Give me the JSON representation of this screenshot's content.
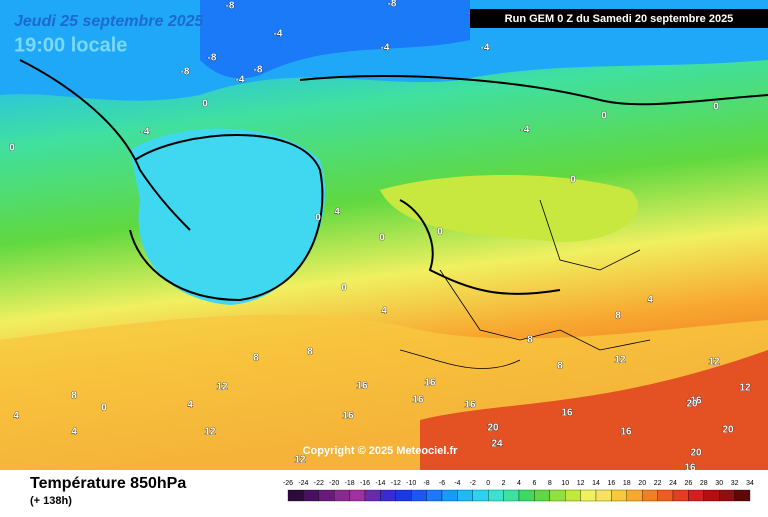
{
  "header": {
    "date": "Jeudi 25 septembre 2025",
    "time": "19:00 locale",
    "run": "Run GEM 0 Z du Samedi 20 septembre 2025"
  },
  "copyright": "Copyright © 2025 Meteociel.fr",
  "footer": {
    "title": "Température 850hPa",
    "lead": "(+ 138h)"
  },
  "legend": {
    "ticks": [
      -26,
      -24,
      -22,
      -20,
      -18,
      -16,
      -14,
      -12,
      -10,
      -8,
      -6,
      -4,
      -2,
      0,
      2,
      4,
      6,
      8,
      10,
      12,
      14,
      16,
      18,
      20,
      22,
      24,
      26,
      28,
      30,
      32,
      34
    ],
    "colors": [
      "#2d0a3c",
      "#4a1060",
      "#6a1a7a",
      "#8a2a8e",
      "#a030a0",
      "#6a2ab0",
      "#3a2ad0",
      "#1a3ae0",
      "#1a5af0",
      "#1a7af8",
      "#1a9af8",
      "#20b8f8",
      "#30d0f0",
      "#40e0d0",
      "#40e0a0",
      "#40d860",
      "#60d840",
      "#90e040",
      "#c0e840",
      "#f0f060",
      "#f8e060",
      "#f8c840",
      "#f8a830",
      "#f08020",
      "#e86020",
      "#e04020",
      "#d02020",
      "#b01010",
      "#901010",
      "#600808"
    ]
  },
  "contour_labels": [
    "-8",
    "-8",
    "-4",
    "-4",
    "-8",
    "-8",
    "-4",
    "-4",
    "-4",
    "-8",
    "0",
    "0",
    "0",
    "4",
    "-4",
    "0",
    "0",
    "0",
    "0",
    "4",
    "8",
    "8",
    "8",
    "4",
    "4",
    "0",
    "4",
    "12",
    "12",
    "16",
    "16",
    "16",
    "16",
    "16",
    "16",
    "12",
    "12",
    "16",
    "20",
    "20",
    "24",
    "20",
    "16",
    "16",
    "12",
    "12",
    "8",
    "8",
    "8",
    "4",
    "0",
    "0",
    "20"
  ]
}
